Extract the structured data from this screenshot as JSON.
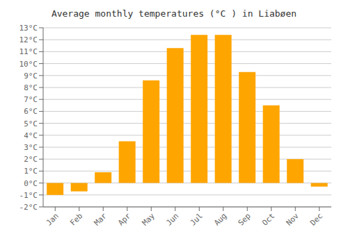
{
  "chart_data": {
    "type": "bar",
    "title": "Average monthly temperatures (°C ) in Liabøen",
    "categories": [
      "Jan",
      "Feb",
      "Mar",
      "Apr",
      "May",
      "Jun",
      "Jul",
      "Aug",
      "Sep",
      "Oct",
      "Nov",
      "Dec"
    ],
    "values": [
      -1.0,
      -0.7,
      0.9,
      3.5,
      8.6,
      11.3,
      12.4,
      12.4,
      9.3,
      6.5,
      2.0,
      -0.3
    ],
    "color": "#FFA500",
    "ylim": [
      -2,
      13
    ],
    "yticks": [
      {
        "value": -2,
        "label": "-2°C"
      },
      {
        "value": -1,
        "label": "-1°C"
      },
      {
        "value": 0,
        "label": "0°C"
      },
      {
        "value": 1,
        "label": "1°C"
      },
      {
        "value": 2,
        "label": "2°C"
      },
      {
        "value": 3,
        "label": "3°C"
      },
      {
        "value": 4,
        "label": "4°C"
      },
      {
        "value": 5,
        "label": "5°C"
      },
      {
        "value": 6,
        "label": "6°C"
      },
      {
        "value": 7,
        "label": "7°C"
      },
      {
        "value": 8,
        "label": "8°C"
      },
      {
        "value": 9,
        "label": "9°C"
      },
      {
        "value": 10,
        "label": "10°C"
      },
      {
        "value": 11,
        "label": "11°C"
      },
      {
        "value": 12,
        "label": "12°C"
      },
      {
        "value": 13,
        "label": "13°C"
      }
    ],
    "grid": true
  }
}
